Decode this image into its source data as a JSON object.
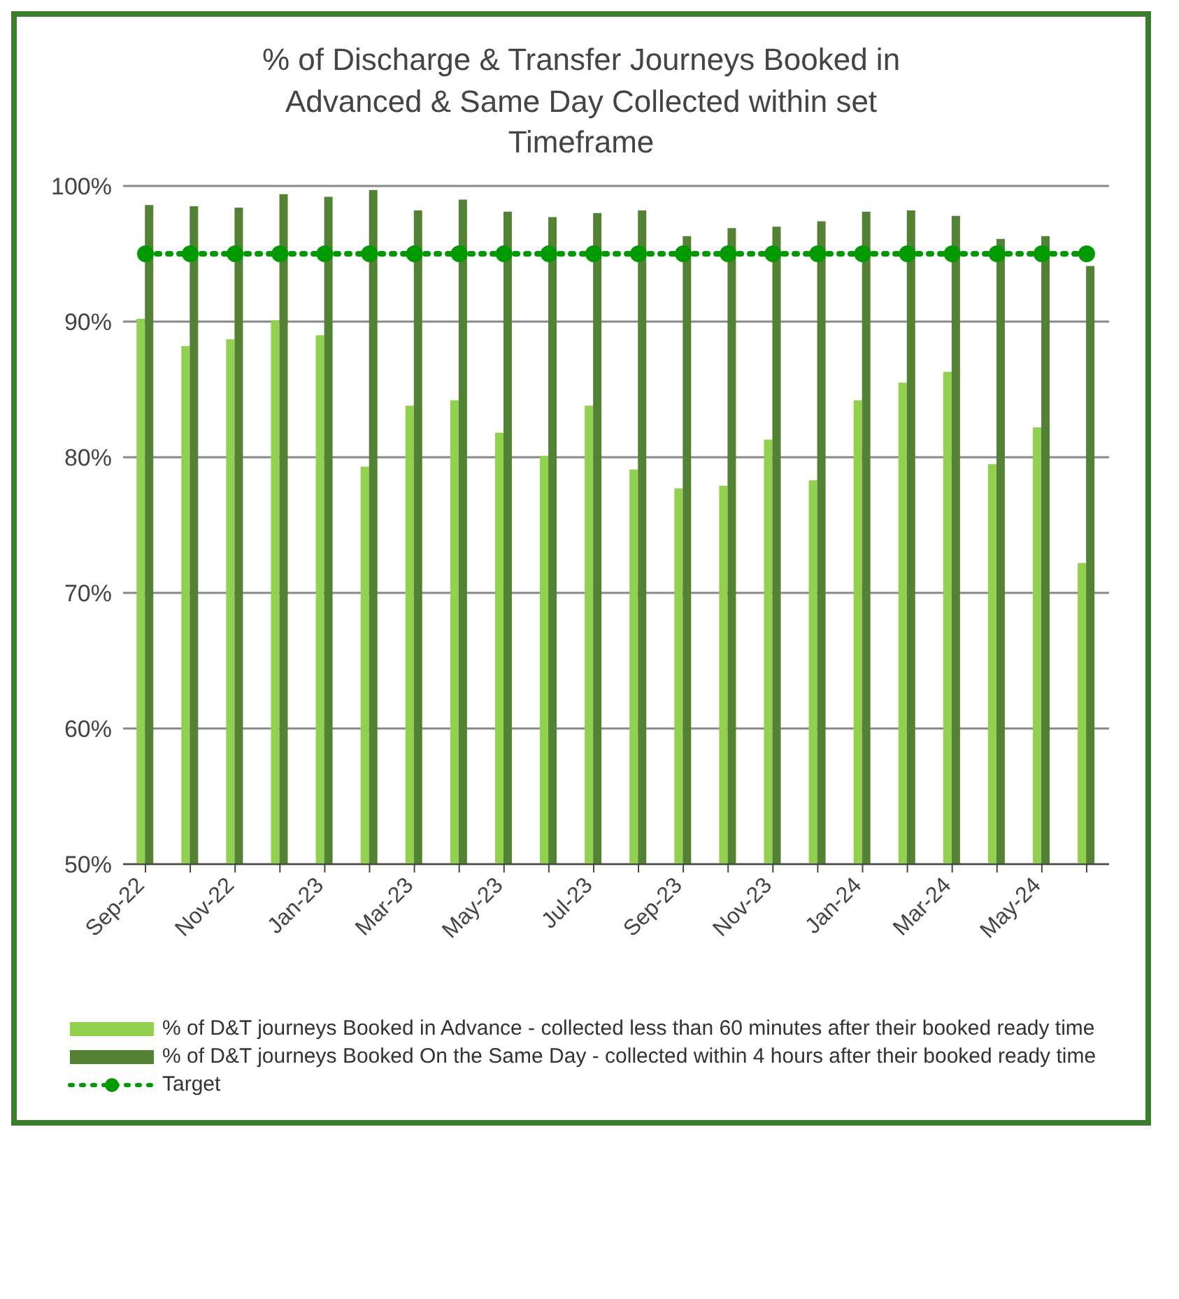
{
  "chart_data": {
    "type": "bar",
    "title": "% of Discharge & Transfer Journeys Booked in Advanced & Same Day Collected within set Timeframe",
    "categories": [
      "Sep-22",
      null,
      "Nov-22",
      null,
      "Jan-23",
      null,
      "Mar-23",
      null,
      "May-23",
      null,
      "Jul-23",
      null,
      "Sep-23",
      null,
      "Nov-23",
      null,
      "Jan-24",
      null,
      "Mar-24",
      null,
      "May-24",
      null
    ],
    "series": [
      {
        "name": "% of D&T journeys Booked in Advance - collected less than 60 minutes after their booked ready time",
        "color": "#92d050",
        "values": [
          90.2,
          88.2,
          88.7,
          90.1,
          89.0,
          79.3,
          83.8,
          84.2,
          81.8,
          80.1,
          83.8,
          79.1,
          77.7,
          77.9,
          81.3,
          78.3,
          84.2,
          85.5,
          86.3,
          79.5,
          82.2,
          72.2
        ]
      },
      {
        "name": "% of  D&T journeys Booked On the Same Day - collected within 4 hours after their booked ready time",
        "color": "#548235",
        "values": [
          98.6,
          98.5,
          98.4,
          99.4,
          99.2,
          99.7,
          98.2,
          99.0,
          98.1,
          97.7,
          98.0,
          98.2,
          96.3,
          96.9,
          97.0,
          97.4,
          98.1,
          98.2,
          97.8,
          96.1,
          96.3,
          94.1
        ]
      },
      {
        "name": "Target",
        "type": "line",
        "color": "#009900",
        "line_style": "dotted",
        "marker": "circle",
        "values": [
          95,
          95,
          95,
          95,
          95,
          95,
          95,
          95,
          95,
          95,
          95,
          95,
          95,
          95,
          95,
          95,
          95,
          95,
          95,
          95,
          95,
          95
        ]
      }
    ],
    "ylim": [
      50,
      100
    ],
    "yticks": [
      {
        "value": 50,
        "label": "50%"
      },
      {
        "value": 60,
        "label": "60%"
      },
      {
        "value": 70,
        "label": "70%"
      },
      {
        "value": 80,
        "label": "80%"
      },
      {
        "value": 90,
        "label": "90%"
      },
      {
        "value": 100,
        "label": "100%"
      }
    ],
    "grid": "y",
    "legend": "bottom"
  }
}
